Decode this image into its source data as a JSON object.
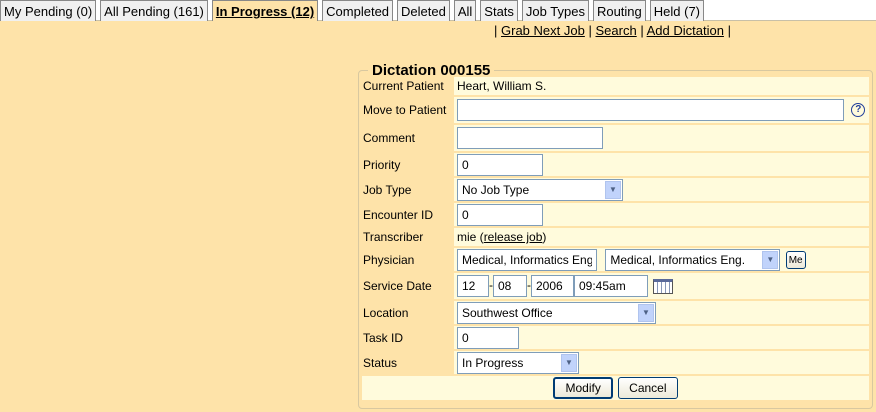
{
  "tabs": [
    {
      "label": "My Pending (0)"
    },
    {
      "label": "All Pending (161)"
    },
    {
      "label": "In Progress (12)",
      "active": true
    },
    {
      "label": "Completed"
    },
    {
      "label": "Deleted"
    },
    {
      "label": "All"
    },
    {
      "label": "Stats"
    },
    {
      "label": "Job Types"
    },
    {
      "label": "Routing"
    },
    {
      "label": "Held (7)"
    }
  ],
  "links": {
    "grab": "Grab Next Job",
    "search": "Search",
    "add": "Add Dictation",
    "sep": "|"
  },
  "form": {
    "title": "Dictation 000155",
    "current_patient_label": "Current Patient",
    "current_patient": "Heart, William S.",
    "move_label": "Move to Patient",
    "move_value": "",
    "comment_label": "Comment",
    "comment_value": "",
    "priority_label": "Priority",
    "priority_value": "0",
    "jobtype_label": "Job Type",
    "jobtype_value": "No Job Type",
    "encounter_label": "Encounter ID",
    "encounter_value": "0",
    "transcriber_label": "Transcriber",
    "transcriber_value": "mie",
    "release_label": "release job",
    "physician_label": "Physician",
    "physician_text": "Medical, Informatics Eng.",
    "physician_select": "Medical, Informatics Eng.",
    "me_label": "Me",
    "service_label": "Service Date",
    "month": "12",
    "day": "08",
    "year": "2006",
    "time": "09:45am",
    "date_sep": "-",
    "location_label": "Location",
    "location_value": "Southwest Office",
    "task_label": "Task ID",
    "task_value": "0",
    "status_label": "Status",
    "status_value": "In Progress",
    "modify_label": "Modify",
    "cancel_label": "Cancel"
  },
  "icons": {
    "help": "help-icon",
    "calendar": "calendar-icon",
    "dropdown": "chevron-down-icon"
  },
  "colors": {
    "background": "#fee3a9",
    "value_cell": "#fffbdc"
  }
}
